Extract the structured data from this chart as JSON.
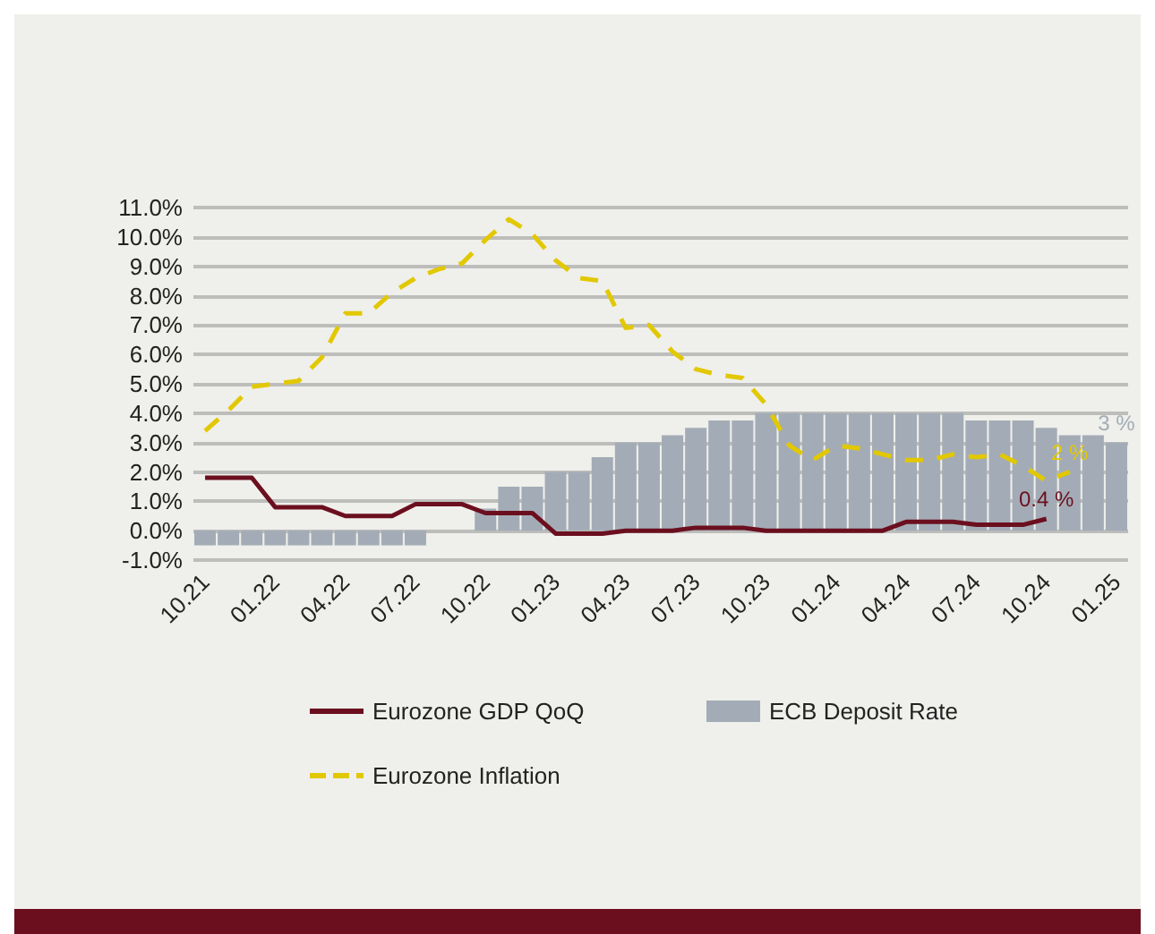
{
  "chart_data": {
    "type": "bar",
    "categories": [
      "10.21",
      null,
      null,
      "01.22",
      null,
      null,
      "04.22",
      null,
      null,
      "07.22",
      null,
      null,
      "10.22",
      null,
      null,
      "01.23",
      null,
      null,
      "04.23",
      null,
      null,
      "07.23",
      null,
      null,
      "10.23",
      null,
      null,
      "01.24",
      null,
      null,
      "04.24",
      null,
      null,
      "07.24",
      null,
      null,
      "10.24",
      null,
      null,
      "01.25"
    ],
    "series": [
      {
        "name": "Eurozone GDP QoQ",
        "type": "line",
        "line_style": "solid",
        "color": "#6b0f1f",
        "values": [
          1.8,
          1.8,
          1.8,
          0.8,
          0.8,
          0.8,
          0.5,
          0.5,
          0.5,
          0.9,
          0.9,
          0.9,
          0.6,
          0.6,
          0.6,
          -0.1,
          -0.1,
          -0.1,
          0.0,
          0.0,
          0.0,
          0.1,
          0.1,
          0.1,
          0.0,
          0.0,
          0.0,
          0.0,
          0.0,
          0.0,
          0.3,
          0.3,
          0.3,
          0.2,
          0.2,
          0.2,
          0.4,
          null,
          null,
          null
        ],
        "value_labels": [
          null,
          null,
          null,
          null,
          null,
          null,
          null,
          null,
          null,
          null,
          null,
          null,
          null,
          null,
          null,
          null,
          null,
          null,
          null,
          null,
          null,
          null,
          null,
          null,
          null,
          null,
          null,
          null,
          null,
          null,
          null,
          null,
          null,
          null,
          null,
          null,
          "0.4 %",
          null,
          null,
          null
        ]
      },
      {
        "name": "ECB Deposit Rate",
        "color": "#a3acb6",
        "values": [
          -0.5,
          -0.5,
          -0.5,
          -0.5,
          -0.5,
          -0.5,
          -0.5,
          -0.5,
          -0.5,
          -0.5,
          0,
          0,
          0.75,
          1.5,
          1.5,
          2.0,
          2.0,
          2.5,
          3.0,
          3.0,
          3.25,
          3.5,
          3.75,
          3.75,
          4.0,
          4.0,
          4.0,
          4.0,
          4.0,
          4.0,
          4.0,
          4.0,
          4.0,
          3.75,
          3.75,
          3.75,
          3.5,
          3.25,
          3.25,
          3.0
        ],
        "value_labels": [
          null,
          null,
          null,
          null,
          null,
          null,
          null,
          null,
          null,
          null,
          null,
          null,
          null,
          null,
          null,
          null,
          null,
          null,
          null,
          null,
          null,
          null,
          null,
          null,
          null,
          null,
          null,
          null,
          null,
          null,
          null,
          null,
          null,
          null,
          null,
          null,
          null,
          null,
          null,
          "3 %"
        ]
      },
      {
        "name": "Eurozone Inflation",
        "type": "line",
        "line_style": "dashed",
        "color": "#e2c800",
        "values": [
          3.4,
          4.1,
          4.9,
          5.0,
          5.1,
          5.9,
          7.4,
          7.4,
          8.1,
          8.6,
          8.9,
          9.1,
          9.9,
          10.6,
          10.1,
          9.2,
          8.6,
          8.5,
          6.9,
          7.0,
          6.1,
          5.5,
          5.3,
          5.2,
          4.3,
          2.9,
          2.4,
          2.9,
          2.8,
          2.6,
          2.4,
          2.4,
          2.6,
          2.5,
          2.6,
          2.2,
          1.7,
          2.0,
          null,
          null
        ],
        "value_labels": [
          null,
          null,
          null,
          null,
          null,
          null,
          null,
          null,
          null,
          null,
          null,
          null,
          null,
          null,
          null,
          null,
          null,
          null,
          null,
          null,
          null,
          null,
          null,
          null,
          null,
          null,
          null,
          null,
          null,
          null,
          null,
          null,
          null,
          null,
          null,
          null,
          null,
          "2 %",
          null,
          null
        ]
      }
    ],
    "ylim": [
      -1,
      11
    ],
    "yticks": [
      {
        "value": -1,
        "label": "-1.0%"
      },
      {
        "value": 0,
        "label": "0.0%"
      },
      {
        "value": 1,
        "label": "1.0%"
      },
      {
        "value": 2,
        "label": "2.0%"
      },
      {
        "value": 3,
        "label": "3.0%"
      },
      {
        "value": 4,
        "label": "4.0%"
      },
      {
        "value": 5,
        "label": "5.0%"
      },
      {
        "value": 6,
        "label": "6.0%"
      },
      {
        "value": 7,
        "label": "7.0%"
      },
      {
        "value": 8,
        "label": "8.0%"
      },
      {
        "value": 9,
        "label": "9.0%"
      },
      {
        "value": 10,
        "label": "10.0%"
      },
      {
        "value": 11,
        "label": "11.0%"
      }
    ],
    "grid": "y",
    "legend": "bottom",
    "marker": "none"
  }
}
